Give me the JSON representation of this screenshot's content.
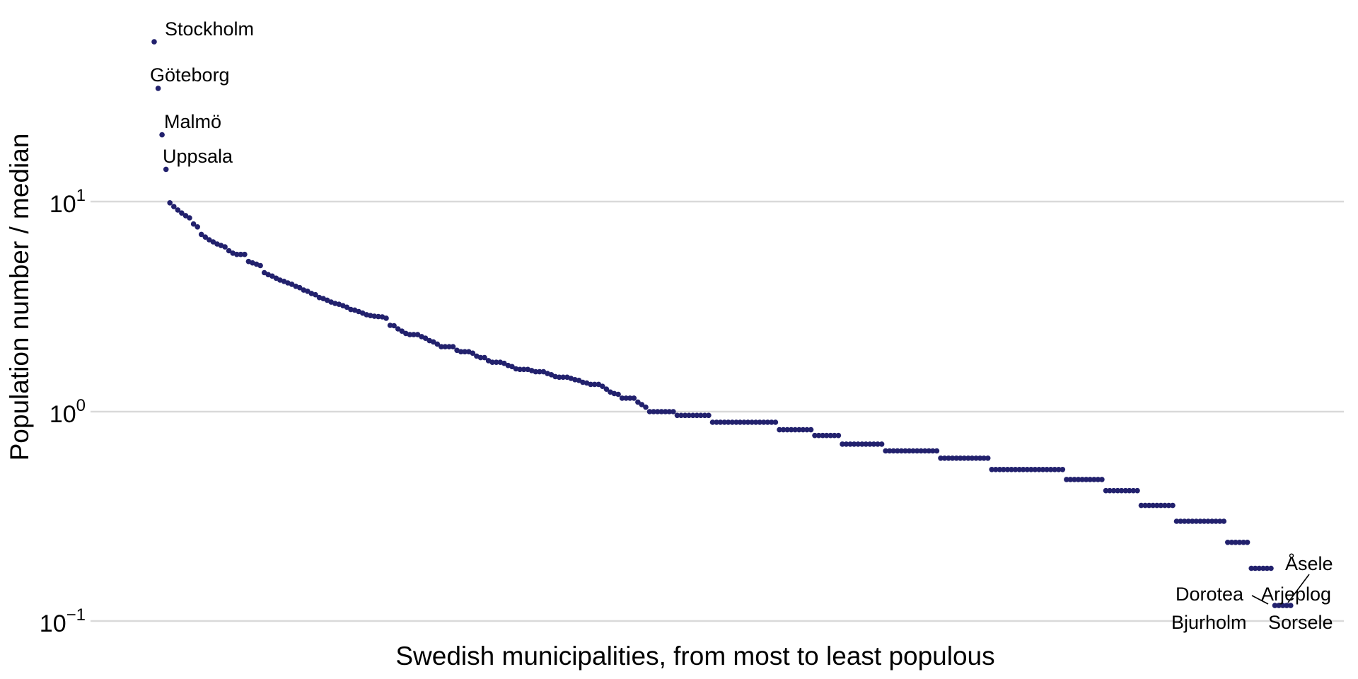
{
  "chart_data": {
    "type": "scatter",
    "title": "",
    "xlabel": "Swedish municipalities, from most to least populous",
    "ylabel": "Population number / median",
    "y_scale": "log10",
    "ylim": [
      0.095,
      65
    ],
    "grid": "horizontal-major-only",
    "n_points": 290,
    "point_color": "#22216d",
    "grid_color": "#d9d9d9",
    "y_ticks": [
      {
        "base": "10",
        "exp": "1",
        "value": 10
      },
      {
        "base": "10",
        "exp": "0",
        "value": 1
      },
      {
        "base": "10",
        "exp": "−1",
        "value": 0.1
      }
    ],
    "values": [
      58,
      34.8,
      20.9,
      14.3,
      9.9,
      9.5,
      9.15,
      8.85,
      8.6,
      8.4,
      7.85,
      7.6,
      7.0,
      6.8,
      6.6,
      6.45,
      6.3,
      6.2,
      6.1,
      5.85,
      5.7,
      5.62,
      5.62,
      5.62,
      5.2,
      5.12,
      5.05,
      4.97,
      4.6,
      4.5,
      4.43,
      4.33,
      4.24,
      4.18,
      4.11,
      4.05,
      3.96,
      3.9,
      3.8,
      3.75,
      3.66,
      3.61,
      3.5,
      3.46,
      3.4,
      3.33,
      3.28,
      3.25,
      3.2,
      3.15,
      3.07,
      3.05,
      3.0,
      2.95,
      2.9,
      2.87,
      2.85,
      2.84,
      2.83,
      2.79,
      2.58,
      2.57,
      2.48,
      2.42,
      2.36,
      2.33,
      2.33,
      2.33,
      2.28,
      2.24,
      2.18,
      2.15,
      2.1,
      2.04,
      2.04,
      2.04,
      2.04,
      1.96,
      1.93,
      1.93,
      1.93,
      1.9,
      1.84,
      1.81,
      1.81,
      1.75,
      1.72,
      1.72,
      1.72,
      1.7,
      1.66,
      1.64,
      1.6,
      1.59,
      1.59,
      1.59,
      1.57,
      1.55,
      1.55,
      1.55,
      1.52,
      1.5,
      1.47,
      1.46,
      1.46,
      1.46,
      1.44,
      1.42,
      1.41,
      1.38,
      1.37,
      1.35,
      1.35,
      1.35,
      1.32,
      1.28,
      1.24,
      1.22,
      1.21,
      1.16,
      1.16,
      1.16,
      1.16,
      1.11,
      1.08,
      1.05,
      1.0,
      1.0,
      1.0,
      1.0,
      1.0,
      1.0,
      1.0,
      0.96,
      0.96,
      0.96,
      0.96,
      0.96,
      0.96,
      0.96,
      0.96,
      0.96,
      0.89,
      0.89,
      0.89,
      0.89,
      0.89,
      0.89,
      0.89,
      0.89,
      0.89,
      0.89,
      0.89,
      0.89,
      0.89,
      0.89,
      0.89,
      0.89,
      0.89,
      0.82,
      0.82,
      0.82,
      0.82,
      0.82,
      0.82,
      0.82,
      0.82,
      0.82,
      0.77,
      0.77,
      0.77,
      0.77,
      0.77,
      0.77,
      0.77,
      0.7,
      0.7,
      0.7,
      0.7,
      0.7,
      0.7,
      0.7,
      0.7,
      0.7,
      0.7,
      0.7,
      0.65,
      0.65,
      0.65,
      0.65,
      0.65,
      0.65,
      0.65,
      0.65,
      0.65,
      0.65,
      0.65,
      0.65,
      0.65,
      0.65,
      0.6,
      0.6,
      0.6,
      0.6,
      0.6,
      0.6,
      0.6,
      0.6,
      0.6,
      0.6,
      0.6,
      0.6,
      0.6,
      0.53,
      0.53,
      0.53,
      0.53,
      0.53,
      0.53,
      0.53,
      0.53,
      0.53,
      0.53,
      0.53,
      0.53,
      0.53,
      0.53,
      0.53,
      0.53,
      0.53,
      0.53,
      0.53,
      0.475,
      0.475,
      0.475,
      0.475,
      0.475,
      0.475,
      0.475,
      0.475,
      0.475,
      0.475,
      0.42,
      0.42,
      0.42,
      0.42,
      0.42,
      0.42,
      0.42,
      0.42,
      0.42,
      0.357,
      0.357,
      0.357,
      0.357,
      0.357,
      0.357,
      0.357,
      0.357,
      0.357,
      0.3,
      0.3,
      0.3,
      0.3,
      0.3,
      0.3,
      0.3,
      0.3,
      0.3,
      0.3,
      0.3,
      0.3,
      0.3,
      0.238,
      0.238,
      0.238,
      0.238,
      0.238,
      0.238,
      0.179,
      0.179,
      0.179,
      0.179,
      0.179,
      0.179,
      0.119,
      0.119,
      0.119,
      0.119,
      0.119
    ],
    "annotations": [
      {
        "text": "Stockholm",
        "point_index": 0
      },
      {
        "text": "Göteborg",
        "point_index": 1
      },
      {
        "text": "Malmö",
        "point_index": 2
      },
      {
        "text": "Uppsala",
        "point_index": 3
      },
      {
        "text": "Åsele",
        "point_index": 285
      },
      {
        "text": "Dorotea",
        "point_index": 286
      },
      {
        "text": "Arjeplog",
        "point_index": 287
      },
      {
        "text": "Bjurholm",
        "point_index": 288
      },
      {
        "text": "Sorsele",
        "point_index": 289
      }
    ]
  }
}
